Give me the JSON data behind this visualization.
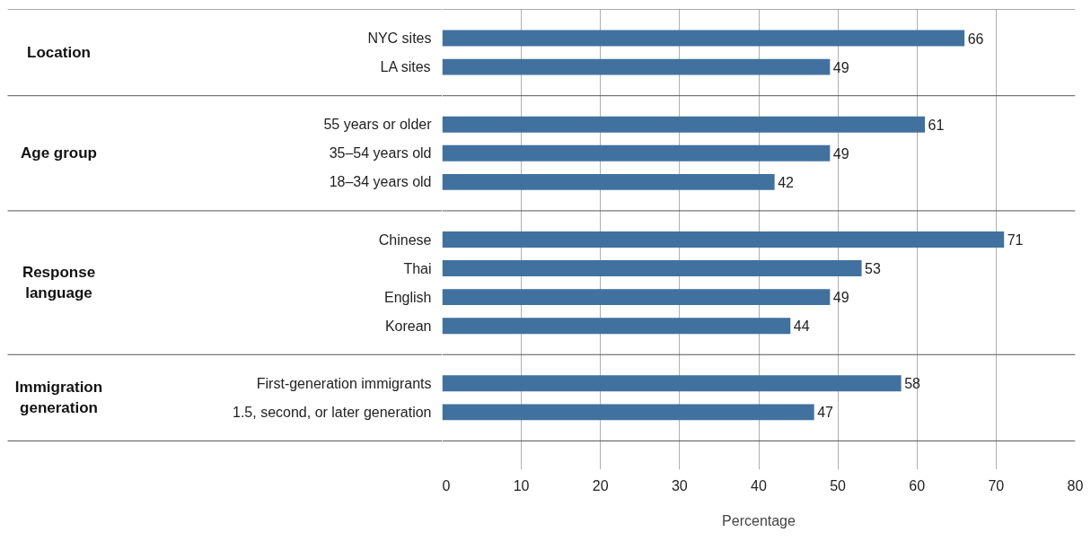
{
  "chart_data": {
    "type": "bar",
    "orientation": "horizontal",
    "categories": [
      "NYC sites",
      "LA sites",
      null,
      "55 years or older",
      "35–54 years old",
      "18–34 years old",
      null,
      "Chinese",
      "Thai",
      "English",
      "Korean",
      null,
      "First-generation immigrants",
      "1.5, second, or later generation"
    ],
    "values": [
      66,
      49,
      null,
      61,
      49,
      42,
      null,
      71,
      53,
      49,
      44,
      null,
      58,
      47
    ],
    "color": "#41729f",
    "xlabel": "Percentage",
    "xlim": [
      0,
      80
    ],
    "xticks": [
      0,
      10,
      20,
      30,
      40,
      50,
      60,
      70,
      80
    ],
    "grid": "x",
    "data_labels": true,
    "annotations": [
      "Location",
      "Age group",
      "Response language",
      "Immigration generation"
    ]
  }
}
